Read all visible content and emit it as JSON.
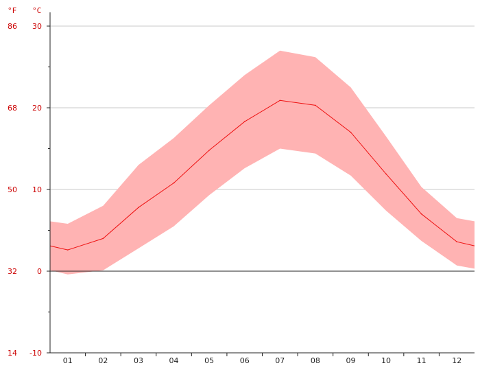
{
  "chart_data": {
    "type": "area",
    "categories": [
      "01",
      "02",
      "03",
      "04",
      "05",
      "06",
      "07",
      "08",
      "09",
      "10",
      "11",
      "12"
    ],
    "series": [
      {
        "role": "band-max",
        "values": [
          5.8,
          8.0,
          13.0,
          16.3,
          20.3,
          24.0,
          27.0,
          26.2,
          22.5,
          16.5,
          10.3,
          6.5
        ]
      },
      {
        "role": "mean",
        "values": [
          2.6,
          4.0,
          7.8,
          10.8,
          14.8,
          18.3,
          20.9,
          20.3,
          17.0,
          11.9,
          7.0,
          3.6
        ]
      },
      {
        "role": "band-min",
        "values": [
          -0.4,
          0.1,
          2.8,
          5.5,
          9.3,
          12.6,
          15.0,
          14.4,
          11.7,
          7.4,
          3.7,
          0.7
        ]
      }
    ],
    "edge_values": {
      "start": {
        "max": 6.1,
        "mean": 3.1,
        "min": 0.1
      },
      "end": {
        "max": 6.1,
        "mean": 3.1,
        "min": 0.3
      }
    },
    "y_celsius_ticks": [
      "30",
      "20",
      "10",
      "0",
      "-10"
    ],
    "y_fahrenheit_ticks": [
      "86",
      "68",
      "50",
      "32",
      "14"
    ],
    "unit_celsius": "°C",
    "unit_fahrenheit": "°F",
    "ylim": [
      -10,
      30
    ],
    "grid": true,
    "colors": {
      "band": "#ffb3b3",
      "line": "#ee1111",
      "label": "#cc0000",
      "grid": "#c8c8c8",
      "axis": "#222222"
    }
  }
}
